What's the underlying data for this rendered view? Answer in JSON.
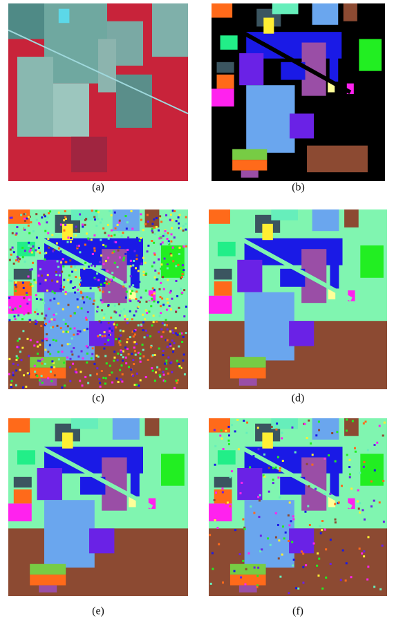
{
  "figure": {
    "captions": [
      "(a)",
      "(b)",
      "(c)",
      "(d)",
      "(e)",
      "(f)"
    ]
  }
}
